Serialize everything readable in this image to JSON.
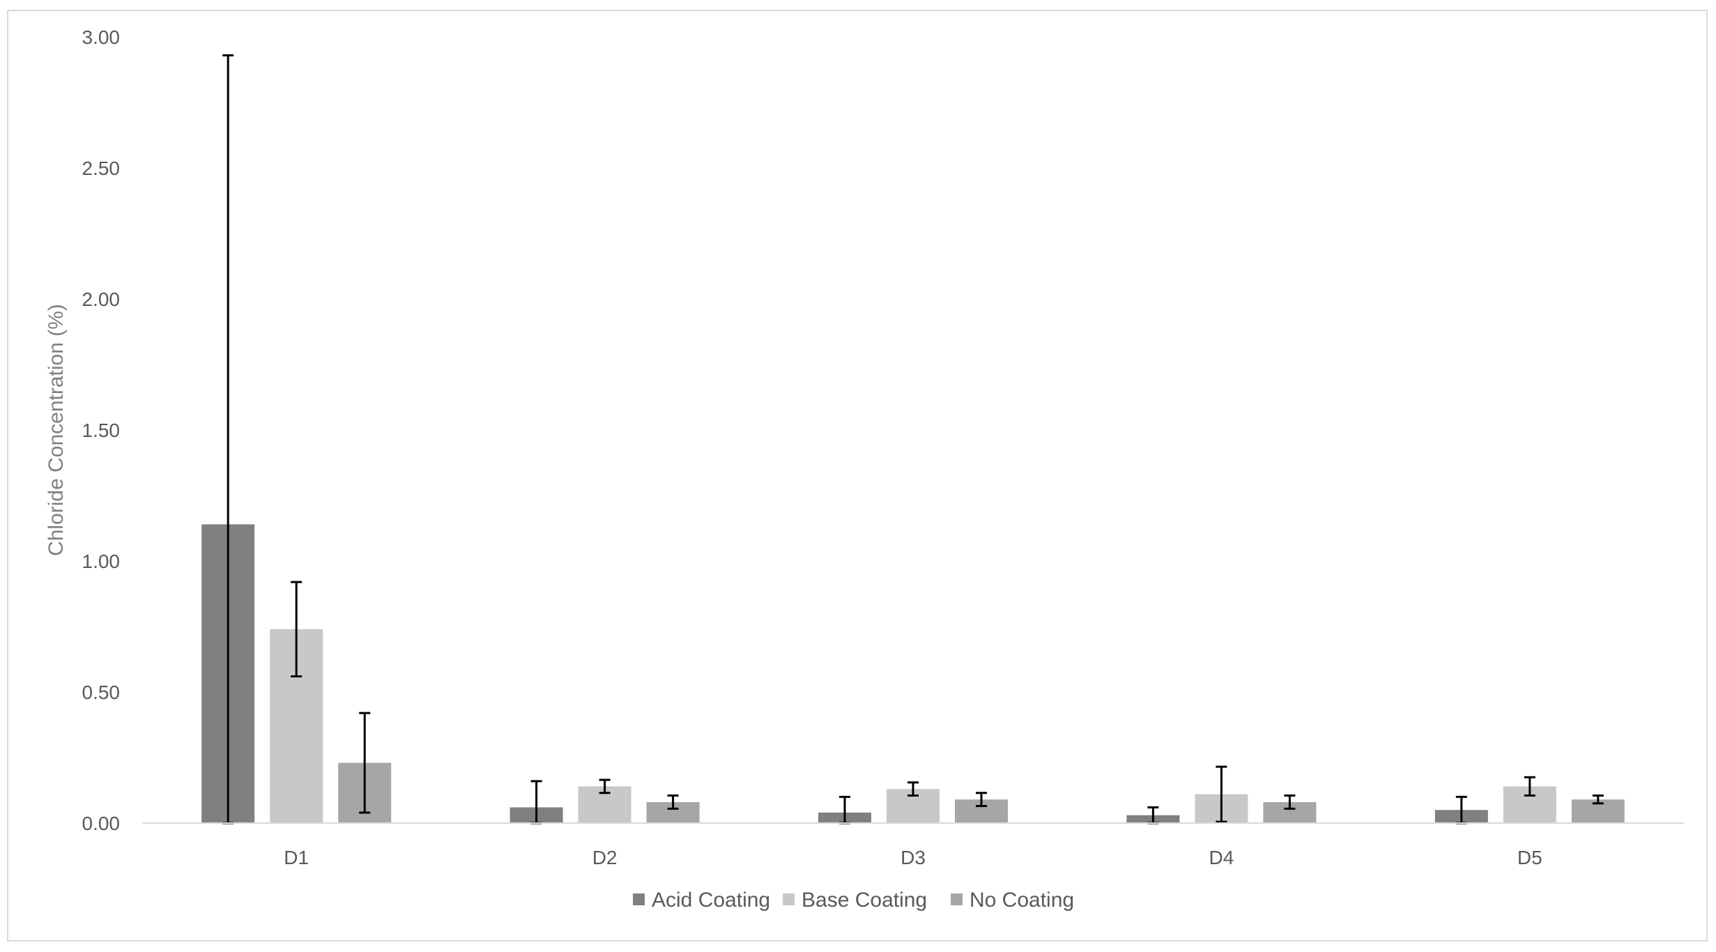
{
  "chart_data": {
    "type": "bar",
    "title": "",
    "xlabel": "",
    "ylabel": "Chloride Concentration (%)",
    "ylim": [
      0,
      3.0
    ],
    "yticks": [
      "0.00",
      "0.50",
      "1.00",
      "1.50",
      "2.00",
      "2.50",
      "3.00"
    ],
    "grid": false,
    "legend_position": "bottom",
    "categories": [
      "D1",
      "D2",
      "D3",
      "D4",
      "D5"
    ],
    "series": [
      {
        "name": "Acid Coating",
        "color": "#808080",
        "values": [
          1.14,
          0.06,
          0.04,
          0.03,
          0.05
        ],
        "errors": [
          1.79,
          0.1,
          0.06,
          0.03,
          0.05
        ]
      },
      {
        "name": "Base Coating",
        "color": "#c8c8c8",
        "values": [
          0.74,
          0.14,
          0.13,
          0.11,
          0.14
        ],
        "errors": [
          0.18,
          0.025,
          0.025,
          0.105,
          0.035
        ]
      },
      {
        "name": "No Coating",
        "color": "#a6a6a6",
        "values": [
          0.23,
          0.08,
          0.09,
          0.08,
          0.09
        ],
        "errors": [
          0.19,
          0.025,
          0.025,
          0.025,
          0.015
        ]
      }
    ]
  }
}
